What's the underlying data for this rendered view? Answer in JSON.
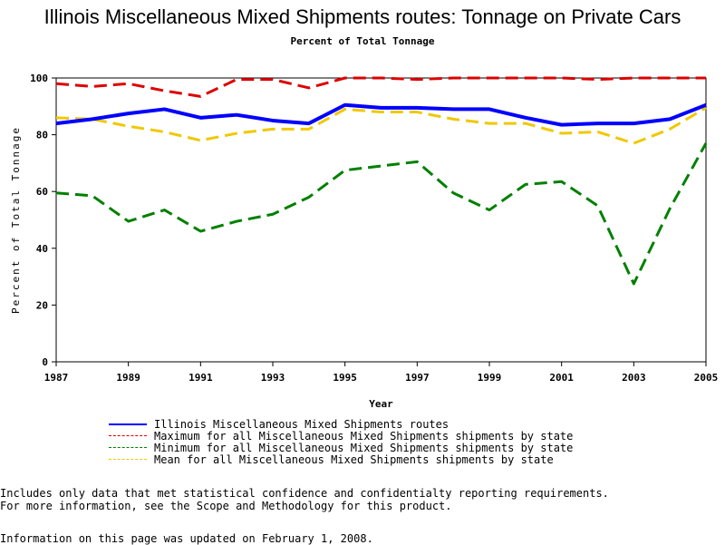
{
  "chart_data": {
    "type": "line",
    "title": "Illinois Miscellaneous Mixed Shipments routes: Tonnage on Private Cars",
    "subtitle": "Percent of Total Tonnage",
    "xlabel": "Year",
    "ylabel": "Percent of Total Tonnage",
    "xlim": [
      1987,
      2005
    ],
    "ylim": [
      0,
      100
    ],
    "x_ticks": [
      1987,
      1989,
      1991,
      1993,
      1995,
      1997,
      1999,
      2001,
      2003,
      2005
    ],
    "y_ticks": [
      0,
      20,
      40,
      60,
      80,
      100
    ],
    "x": [
      1987,
      1988,
      1989,
      1990,
      1991,
      1992,
      1993,
      1994,
      1995,
      1996,
      1997,
      1998,
      1999,
      2000,
      2001,
      2002,
      2003,
      2004,
      2005
    ],
    "series": [
      {
        "name": "Illinois Miscellaneous Mixed Shipments routes",
        "color": "#0000ff",
        "dash": "solid",
        "values": [
          84,
          85.5,
          87.5,
          89,
          86,
          87,
          85,
          84,
          90.5,
          89.5,
          89.5,
          89,
          89,
          86,
          83.5,
          84,
          84,
          85.5,
          90.5
        ]
      },
      {
        "name": "Maximum for all Miscellaneous Mixed Shipments shipments by state",
        "color": "#dd0000",
        "dash": "dashed",
        "values": [
          98,
          97,
          98,
          95.5,
          93.5,
          99.5,
          99.5,
          96.5,
          100,
          100,
          99.5,
          100,
          100,
          100,
          100,
          99.5,
          100,
          100,
          100
        ]
      },
      {
        "name": "Minimum for all Miscellaneous Mixed Shipments shipments by state",
        "color": "#008000",
        "dash": "dashed",
        "values": [
          59.5,
          58.5,
          49.5,
          53.5,
          46,
          49.5,
          52,
          58,
          67.5,
          69,
          70.5,
          59.5,
          53.5,
          62.5,
          63.5,
          55,
          27.5,
          54,
          77
        ]
      },
      {
        "name": "Mean for all Miscellaneous Mixed Shipments shipments by state",
        "color": "#f0c800",
        "dash": "dashed",
        "values": [
          86,
          85.5,
          83,
          81,
          78,
          80.5,
          82,
          82,
          89,
          88,
          88,
          85.5,
          84,
          84,
          80.5,
          81,
          77,
          82,
          89.5
        ]
      }
    ],
    "legend_position": "bottom-left",
    "grid": false
  },
  "notes": {
    "line1": "Includes only data that met statistical confidence and confidentialty reporting requirements.",
    "line2": "For more information, see the Scope and Methodology for this product.",
    "updated": "Information on this page was updated on February 1, 2008."
  }
}
